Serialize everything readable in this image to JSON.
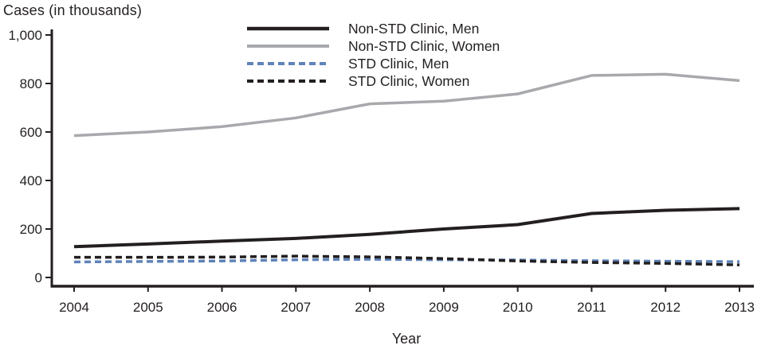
{
  "page": {
    "background": "#ffffff",
    "text_color": "#231f20"
  },
  "chart_data": {
    "type": "line",
    "title": "Cases (in thousands)",
    "xlabel": "Year",
    "ylabel": "Cases (in thousands)",
    "x_categories": [
      "2004",
      "2005",
      "2006",
      "2007",
      "2008",
      "2009",
      "2010",
      "2011",
      "2012",
      "2013"
    ],
    "ylim": [
      0,
      1000
    ],
    "yticks": [
      0,
      200,
      400,
      600,
      800,
      1000
    ],
    "ytick_labels": [
      "0",
      "200",
      "400",
      "600",
      "800",
      "1,000"
    ],
    "grid": false,
    "legend_position": "top-inside",
    "colors": {
      "black": "#231f20",
      "gray": "#a7a9ac",
      "blue": "#5f83b9"
    },
    "series": [
      {
        "name": "Non-STD Clinic, Men",
        "color": "#231f20",
        "style": "solid",
        "width": 4,
        "values": [
          127,
          138,
          150,
          161,
          178,
          200,
          218,
          264,
          277,
          284
        ]
      },
      {
        "name": "Non-STD Clinic, Women",
        "color": "#a7a9ac",
        "style": "solid",
        "width": 3.5,
        "values": [
          585,
          600,
          622,
          658,
          716,
          727,
          757,
          833,
          838,
          812
        ]
      },
      {
        "name": "STD Clinic, Men",
        "color": "#5f83b9",
        "style": "dashed",
        "width": 3.5,
        "values": [
          64,
          66,
          68,
          73,
          75,
          73,
          72,
          69,
          67,
          65
        ]
      },
      {
        "name": "STD Clinic, Women",
        "color": "#231f20",
        "style": "dashed",
        "width": 3.5,
        "values": [
          83,
          83,
          84,
          88,
          85,
          78,
          68,
          62,
          58,
          52
        ]
      }
    ]
  }
}
